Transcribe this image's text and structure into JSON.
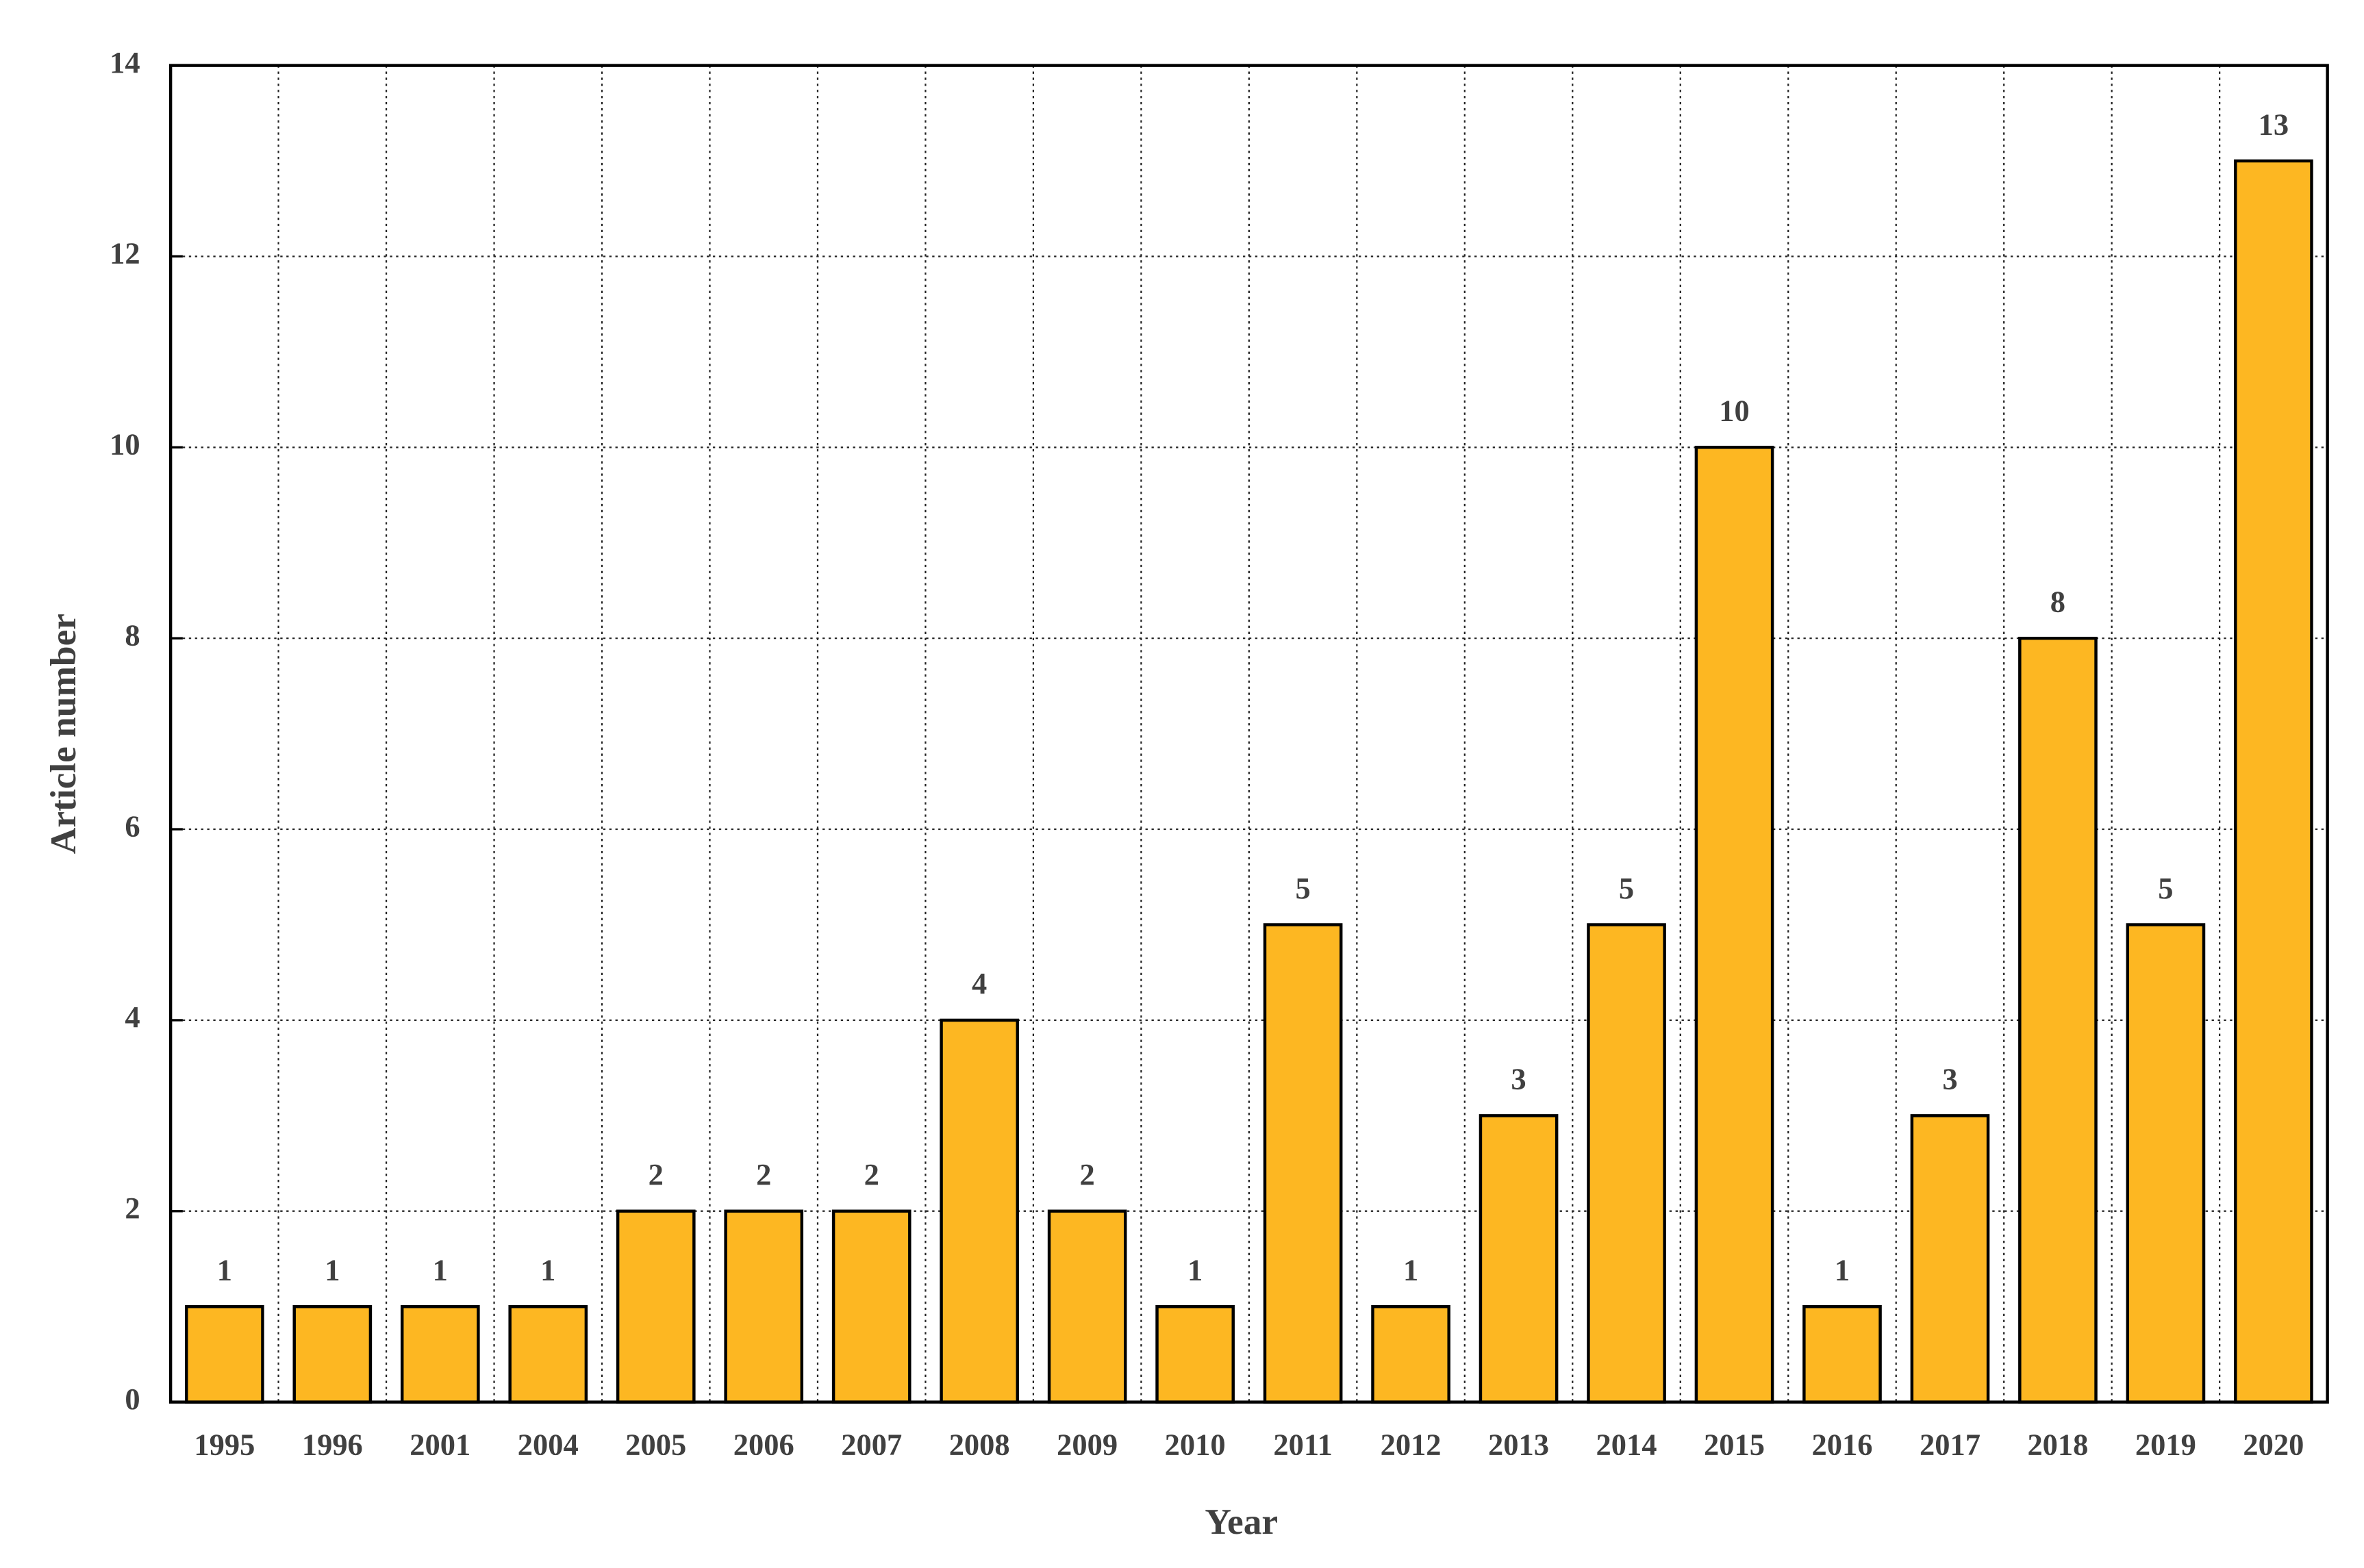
{
  "chart_data": {
    "type": "bar",
    "x_label": "Year",
    "y_label": "Article number",
    "categories": [
      "1995",
      "1996",
      "2001",
      "2004",
      "2005",
      "2006",
      "2007",
      "2008",
      "2009",
      "2010",
      "2011",
      "2012",
      "2013",
      "2014",
      "2015",
      "2016",
      "2017",
      "2018",
      "2019",
      "2020"
    ],
    "values": [
      1,
      1,
      1,
      1,
      2,
      2,
      2,
      4,
      2,
      1,
      5,
      1,
      3,
      5,
      10,
      1,
      3,
      8,
      5,
      13
    ],
    "color": "#fdb722",
    "ylim": [
      0,
      14
    ],
    "yticks": [
      0,
      2,
      4,
      6,
      8,
      10,
      12,
      14
    ],
    "grid": true
  }
}
